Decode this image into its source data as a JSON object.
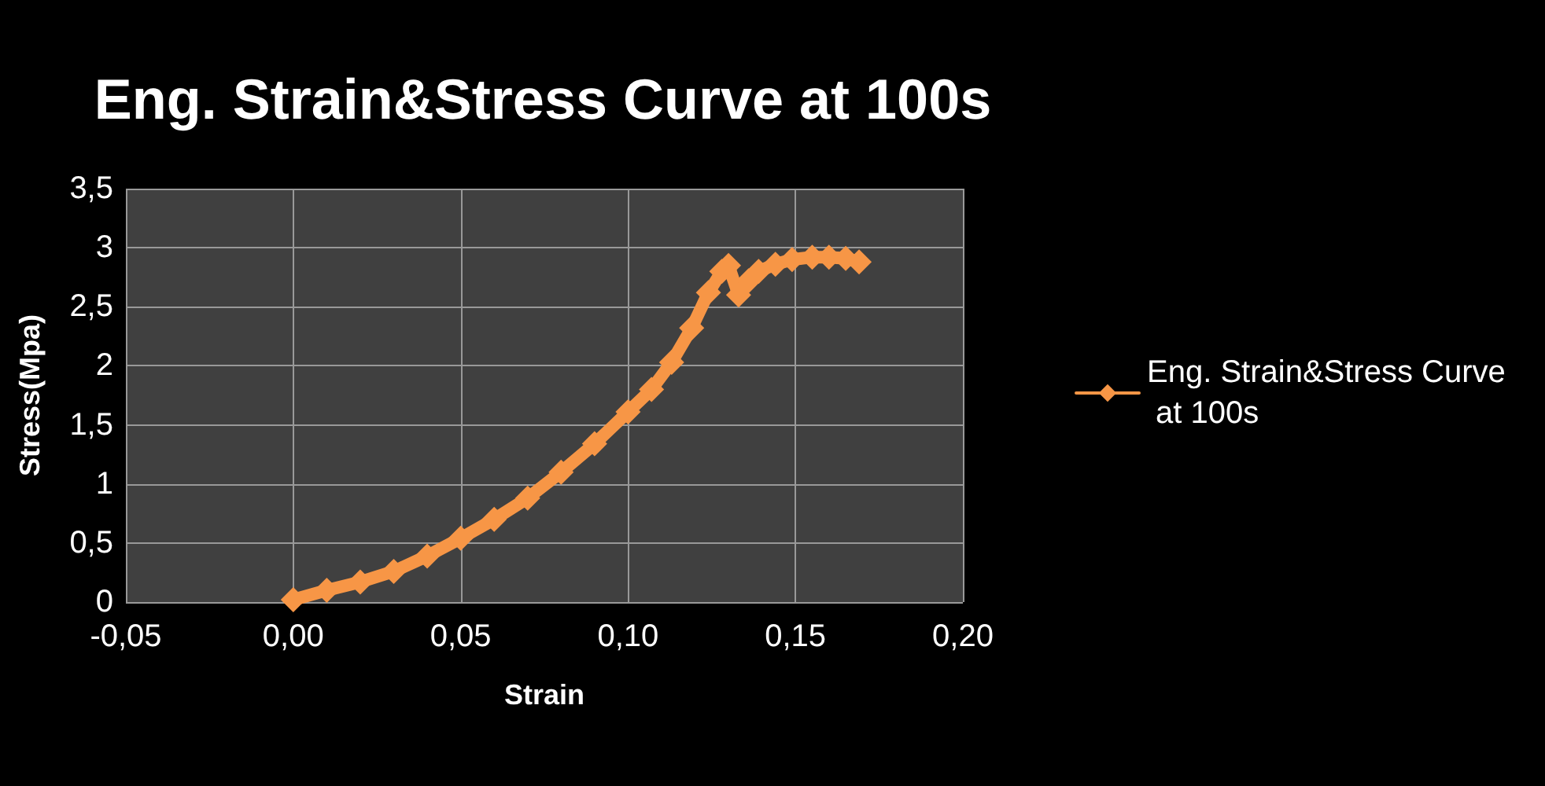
{
  "chart_data": {
    "type": "line",
    "title": "Eng. Strain&Stress Curve at 100s",
    "xlabel": "Strain",
    "ylabel": "Stress(Mpa)",
    "x": [
      0,
      0.01,
      0.02,
      0.03,
      0.04,
      0.05,
      0.06,
      0.07,
      0.08,
      0.09,
      0.1,
      0.107,
      0.113,
      0.119,
      0.124,
      0.128,
      0.13,
      0.133,
      0.136,
      0.139,
      0.144,
      0.149,
      0.155,
      0.16,
      0.165,
      0.169
    ],
    "series": [
      {
        "name": "Eng. Strain&Stress Curve at 100s",
        "color": "#f79646",
        "values": [
          0.02,
          0.1,
          0.17,
          0.26,
          0.39,
          0.54,
          0.7,
          0.88,
          1.1,
          1.34,
          1.61,
          1.8,
          2.03,
          2.32,
          2.62,
          2.8,
          2.85,
          2.6,
          2.72,
          2.8,
          2.86,
          2.9,
          2.92,
          2.92,
          2.91,
          2.88
        ]
      }
    ],
    "xlim": [
      -0.05,
      0.2
    ],
    "xticks": [
      {
        "value": -0.05,
        "label": "-0,05"
      },
      {
        "value": 0,
        "label": "0,00"
      },
      {
        "value": 0.05,
        "label": "0,05"
      },
      {
        "value": 0.1,
        "label": "0,10"
      },
      {
        "value": 0.15,
        "label": "0,15"
      },
      {
        "value": 0.2,
        "label": "0,20"
      }
    ],
    "ylim": [
      0,
      3.5
    ],
    "yticks": [
      0,
      {
        "value": 0.5,
        "label": "0,5"
      },
      1,
      {
        "value": 1.5,
        "label": "1,5"
      },
      2,
      {
        "value": 2.5,
        "label": "2,5"
      },
      3,
      {
        "value": 3.5,
        "label": "3,5"
      }
    ],
    "grid": true,
    "legend": "right",
    "marker": "diamond"
  }
}
